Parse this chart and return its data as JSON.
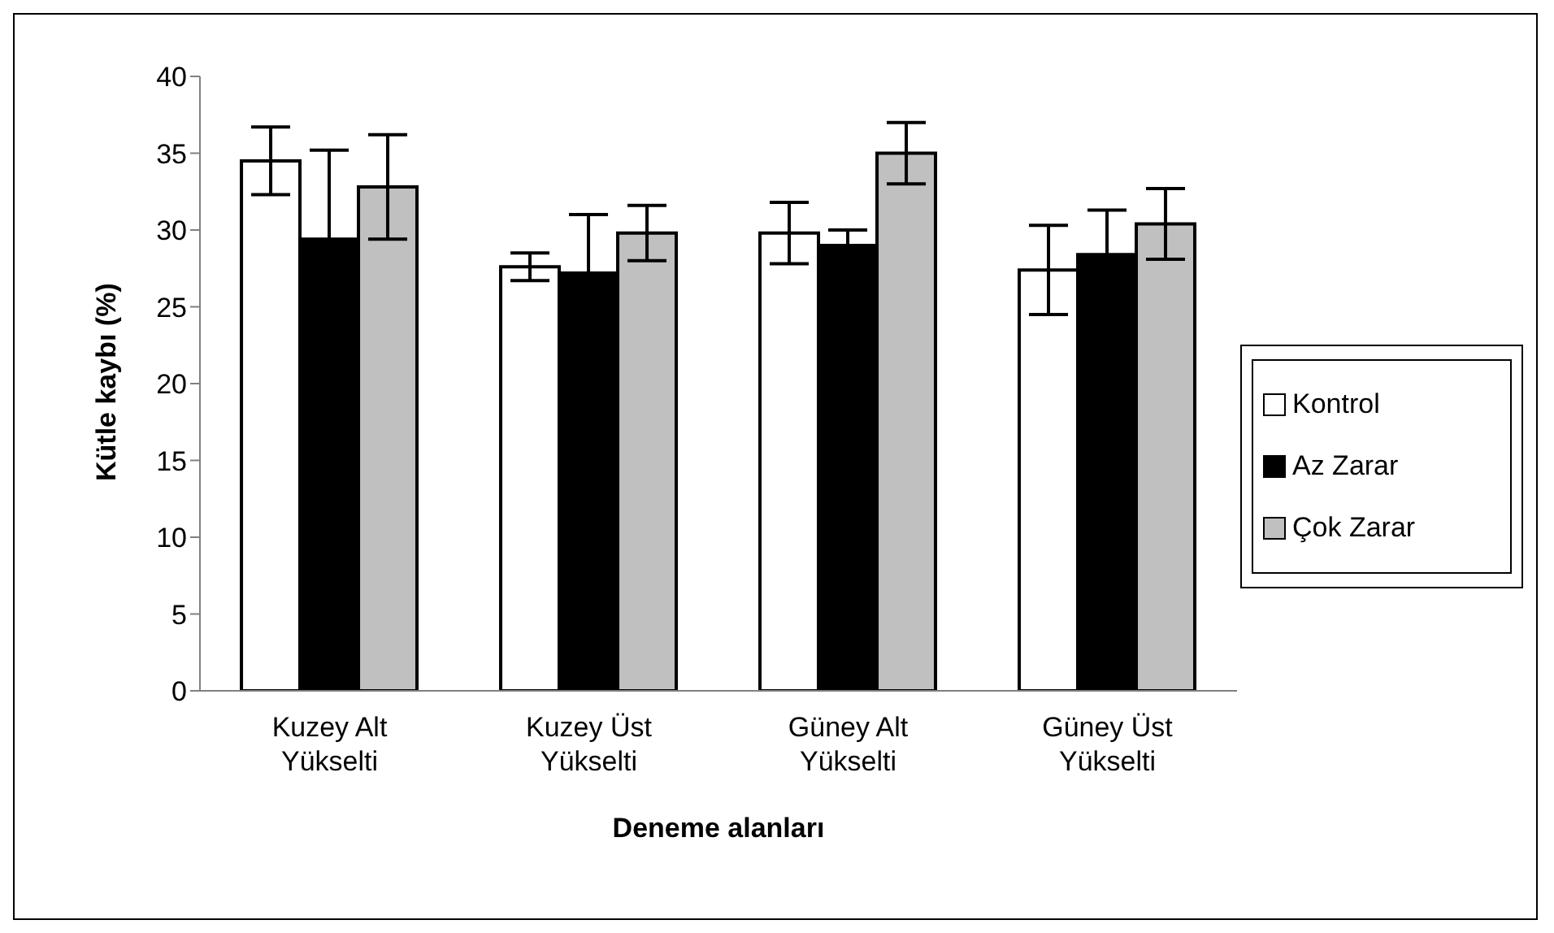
{
  "chart_data": {
    "type": "bar",
    "xlabel": "Deneme alanları",
    "ylabel": "Kütle kaybı (%)",
    "categories": [
      "Kuzey Alt Yükselti",
      "Kuzey Üst Yükselti",
      "Güney Alt Yükselti",
      "Güney Üst Yükselti"
    ],
    "series": [
      {
        "name": "Kontrol",
        "color": "#ffffff",
        "values": [
          34.5,
          27.6,
          29.8,
          27.4
        ],
        "errors": [
          2.2,
          0.9,
          2.0,
          2.9
        ]
      },
      {
        "name": "Az Zarar",
        "color": "#000000",
        "values": [
          29.4,
          27.2,
          29.0,
          28.4
        ],
        "errors": [
          5.8,
          3.8,
          1.0,
          2.9
        ]
      },
      {
        "name": "Çok Zarar",
        "color": "#c0c0c0",
        "values": [
          32.8,
          29.8,
          35.0,
          30.4
        ],
        "errors": [
          3.4,
          1.8,
          2.0,
          2.3
        ]
      }
    ],
    "ylim": [
      0,
      40
    ],
    "yticks": [
      0,
      5,
      10,
      15,
      20,
      25,
      30,
      35,
      40
    ],
    "grid": false,
    "legend": "right"
  }
}
